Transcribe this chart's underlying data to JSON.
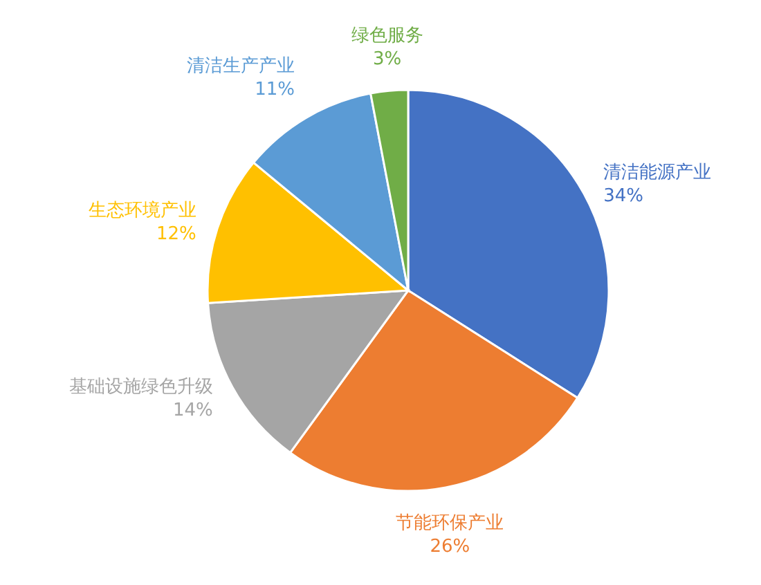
{
  "chart_data": {
    "type": "pie",
    "categories": [
      "清洁能源产业",
      "节能环保产业",
      "基础设施绿色升级",
      "生态环境产业",
      "清洁生产产业",
      "绿色服务"
    ],
    "values": [
      34,
      26,
      14,
      12,
      11,
      3
    ],
    "value_labels": [
      "34%",
      "26%",
      "14%",
      "12%",
      "11%",
      "3%"
    ],
    "colors": [
      "#4472c4",
      "#ed7d31",
      "#a5a5a5",
      "#ffc000",
      "#5b9bd5",
      "#70ad47"
    ],
    "legend": false
  }
}
